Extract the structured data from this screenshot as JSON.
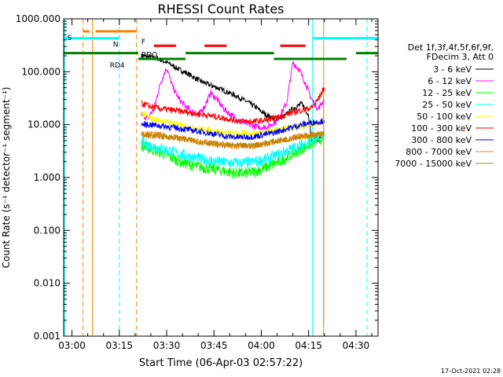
{
  "chart_data": {
    "type": "line",
    "title": "RHESSI Count Rates",
    "xlabel": "Start Time (06-Apr-03 02:57:22)",
    "ylabel": "Count Rate (s⁻¹ detector⁻¹ segment⁻¹)",
    "y_scale": "log",
    "ylim": [
      0.001,
      1000
    ],
    "xlim": [
      "02:57:22",
      "04:37:00"
    ],
    "x_ticks": [
      "03:00",
      "03:15",
      "03:30",
      "03:45",
      "04:00",
      "04:15",
      "04:30"
    ],
    "y_ticks": [
      "1000.000",
      "100.000",
      "10.000",
      "1.000",
      "0.100",
      "0.010",
      "0.001"
    ],
    "legend_header": [
      "Det 1f,3f,4f,5f,6f,9f,",
      "FDecim 3, Att 0"
    ],
    "legend_placement": "right",
    "timestamp": "17-Oct-2021 02:28",
    "series": [
      {
        "name": "3 - 6 keV",
        "color": "#000000",
        "x": [
          "03:22",
          "03:25",
          "03:28",
          "03:31",
          "03:34",
          "03:37",
          "03:40",
          "03:43",
          "03:46",
          "03:49",
          "03:52",
          "03:55",
          "03:58",
          "04:01",
          "04:04",
          "04:07",
          "04:10",
          "04:13",
          "04:15",
          "04:16",
          "04:18",
          "04:20"
        ],
        "y": [
          200,
          190,
          170,
          140,
          110,
          90,
          70,
          58,
          50,
          42,
          35,
          28,
          22,
          16,
          13,
          14,
          20,
          25,
          15,
          5,
          5,
          7
        ]
      },
      {
        "name": "6 - 12 keV",
        "color": "#ff00ff",
        "x": [
          "03:22",
          "03:24",
          "03:26",
          "03:28",
          "03:30",
          "03:32",
          "03:34",
          "03:36",
          "03:38",
          "03:40",
          "03:42",
          "03:44",
          "03:46",
          "03:48",
          "03:50",
          "03:53",
          "03:56",
          "03:59",
          "04:02",
          "04:05",
          "04:08",
          "04:10",
          "04:12",
          "04:14",
          "04:16",
          "04:18",
          "04:20"
        ],
        "y": [
          16,
          13,
          20,
          60,
          120,
          50,
          30,
          22,
          18,
          15,
          22,
          40,
          30,
          20,
          16,
          12,
          10,
          9,
          9,
          12,
          25,
          150,
          110,
          60,
          30,
          20,
          30
        ]
      },
      {
        "name": "12 - 25 keV",
        "color": "#00ff00",
        "x": [
          "03:22",
          "03:25",
          "03:28",
          "03:31",
          "03:34",
          "03:37",
          "03:40",
          "03:43",
          "03:46",
          "03:49",
          "03:52",
          "03:55",
          "03:58",
          "04:01",
          "04:04",
          "04:07",
          "04:10",
          "04:13",
          "04:16",
          "04:19",
          "04:20"
        ],
        "y": [
          4,
          3.5,
          3,
          2.5,
          2,
          1.8,
          1.6,
          1.5,
          1.4,
          1.3,
          1.2,
          1.2,
          1.3,
          1.5,
          1.8,
          2.2,
          2.8,
          3.5,
          4.5,
          5.5,
          6
        ]
      },
      {
        "name": "25 - 50 keV",
        "color": "#00ffff",
        "x": [
          "03:22",
          "03:25",
          "03:28",
          "03:31",
          "03:34",
          "03:37",
          "03:40",
          "03:43",
          "03:46",
          "03:49",
          "03:52",
          "03:55",
          "03:58",
          "04:01",
          "04:04",
          "04:07",
          "04:10",
          "04:13",
          "04:16",
          "04:19",
          "04:20"
        ],
        "y": [
          4.5,
          4,
          3.6,
          3.2,
          2.8,
          2.5,
          2.3,
          2.1,
          2,
          1.9,
          1.9,
          1.9,
          2,
          2.2,
          2.5,
          3,
          3.6,
          4.2,
          5,
          6,
          6.5
        ]
      },
      {
        "name": "50 - 100 keV",
        "color": "#ffff00",
        "x": [
          "03:22",
          "03:25",
          "03:28",
          "03:31",
          "03:34",
          "03:37",
          "03:40",
          "03:43",
          "03:46",
          "03:49",
          "03:52",
          "03:55",
          "03:58",
          "04:01",
          "04:04",
          "04:07",
          "04:10",
          "04:13",
          "04:16",
          "04:19",
          "04:20"
        ],
        "y": [
          17,
          13,
          12,
          11,
          10,
          9,
          8.5,
          8,
          7.5,
          7,
          6.8,
          6.8,
          7,
          7.5,
          8,
          8.5,
          9,
          9.5,
          10,
          10.5,
          11
        ]
      },
      {
        "name": "100 - 300 keV",
        "color": "#ff0000",
        "x": [
          "03:22",
          "03:25",
          "03:28",
          "03:31",
          "03:34",
          "03:37",
          "03:40",
          "03:43",
          "03:46",
          "03:49",
          "03:52",
          "03:55",
          "03:58",
          "04:01",
          "04:04",
          "04:07",
          "04:10",
          "04:13",
          "04:16",
          "04:18",
          "04:20"
        ],
        "y": [
          25,
          22,
          20,
          19,
          18,
          17,
          16,
          15,
          14,
          13,
          12,
          11.5,
          11.5,
          12,
          13,
          15,
          17,
          19,
          21,
          30,
          50
        ]
      },
      {
        "name": "300 - 800 keV",
        "color": "#0000ff",
        "x": [
          "03:22",
          "03:25",
          "03:28",
          "03:31",
          "03:34",
          "03:37",
          "03:40",
          "03:43",
          "03:46",
          "03:49",
          "03:52",
          "03:55",
          "03:58",
          "04:01",
          "04:04",
          "04:07",
          "04:10",
          "04:13",
          "04:16",
          "04:19",
          "04:20"
        ],
        "y": [
          10,
          10,
          9.5,
          9,
          8.5,
          8,
          7.5,
          7,
          6.5,
          6,
          5.8,
          5.8,
          6,
          6.5,
          7,
          8,
          9,
          10,
          11,
          11.5,
          12
        ]
      },
      {
        "name": "800 - 7000 keV",
        "color": "#ff8000",
        "x": [
          "03:22",
          "03:25",
          "03:28",
          "03:31",
          "03:34",
          "03:37",
          "03:40",
          "03:43",
          "03:46",
          "03:49",
          "03:52",
          "03:55",
          "03:58",
          "04:01",
          "04:04",
          "04:07",
          "04:10",
          "04:13",
          "04:16",
          "04:19",
          "04:20"
        ],
        "y": [
          6.5,
          6.5,
          6.3,
          6,
          5.6,
          5.2,
          4.8,
          4.5,
          4.2,
          4,
          3.9,
          3.9,
          4,
          4.3,
          4.7,
          5.1,
          5.6,
          6,
          6.4,
          6.7,
          7
        ]
      },
      {
        "name": "7000 - 15000 keV",
        "color": "#b8860b",
        "x": [
          "03:22",
          "03:25",
          "03:28",
          "03:31",
          "03:34",
          "03:37",
          "03:40",
          "03:43",
          "03:46",
          "03:49",
          "03:52",
          "03:55",
          "03:58",
          "04:01",
          "04:04",
          "04:07",
          "04:10",
          "04:13",
          "04:16",
          "04:19",
          "04:20"
        ],
        "y": [
          6.2,
          6.2,
          6,
          5.8,
          5.5,
          5.1,
          4.8,
          4.5,
          4.3,
          4.1,
          4,
          4,
          4.1,
          4.4,
          4.8,
          5.2,
          5.6,
          6,
          6.3,
          6.6,
          6.8
        ]
      }
    ],
    "vertical_lines": [
      {
        "t": "02:57:40",
        "color": "#00ffff",
        "style": "solid"
      },
      {
        "t": "03:03:30",
        "color": "#ff8000",
        "style": "dashed"
      },
      {
        "t": "03:06:30",
        "color": "#ff8000",
        "style": "solid"
      },
      {
        "t": "03:15:00",
        "color": "#00ffff",
        "style": "dashed"
      },
      {
        "t": "03:20:30",
        "color": "#ff8000",
        "style": "dashed"
      },
      {
        "t": "04:16:15",
        "color": "#00ffff",
        "style": "solid"
      },
      {
        "t": "04:19:45",
        "color": "#ff8000",
        "style": "solid"
      },
      {
        "t": "04:33:30",
        "color": "#00ffff",
        "style": "dashed"
      }
    ],
    "state_bars": [
      {
        "label": "N",
        "label_t": "03:13:00",
        "color": "#00ffff",
        "level": 430,
        "segments": [
          [
            "02:57:22",
            "03:15:00"
          ],
          [
            "04:16:15",
            "04:37:00"
          ]
        ]
      },
      {
        "label": "S",
        "label_t": "02:58:30",
        "color": "#ff8000",
        "level": 580,
        "segments": [
          [
            "03:03:30",
            "03:05:30"
          ],
          [
            "03:07:30",
            "03:20:30"
          ]
        ]
      },
      {
        "label": "F",
        "label_t": "03:22:00",
        "color": "#ff0000",
        "level": 310,
        "segments": [
          [
            "03:26:00",
            "03:33:00"
          ],
          [
            "03:42:00",
            "03:49:00"
          ],
          [
            "04:06:00",
            "04:14:00"
          ]
        ]
      },
      {
        "label": "RDO",
        "label_t": "03:22:00",
        "color": "#008000",
        "level": 225,
        "segments": [
          [
            "02:57:22",
            "03:21:00"
          ],
          [
            "03:36:00",
            "04:04:00"
          ],
          [
            "04:30:00",
            "04:37:00"
          ]
        ]
      },
      {
        "label": "RD4",
        "label_t": "03:12:00",
        "color": "#008000",
        "level": 175,
        "segments": [
          [
            "03:21:00",
            "03:36:00"
          ],
          [
            "04:04:00",
            "04:27:00"
          ]
        ]
      }
    ]
  }
}
